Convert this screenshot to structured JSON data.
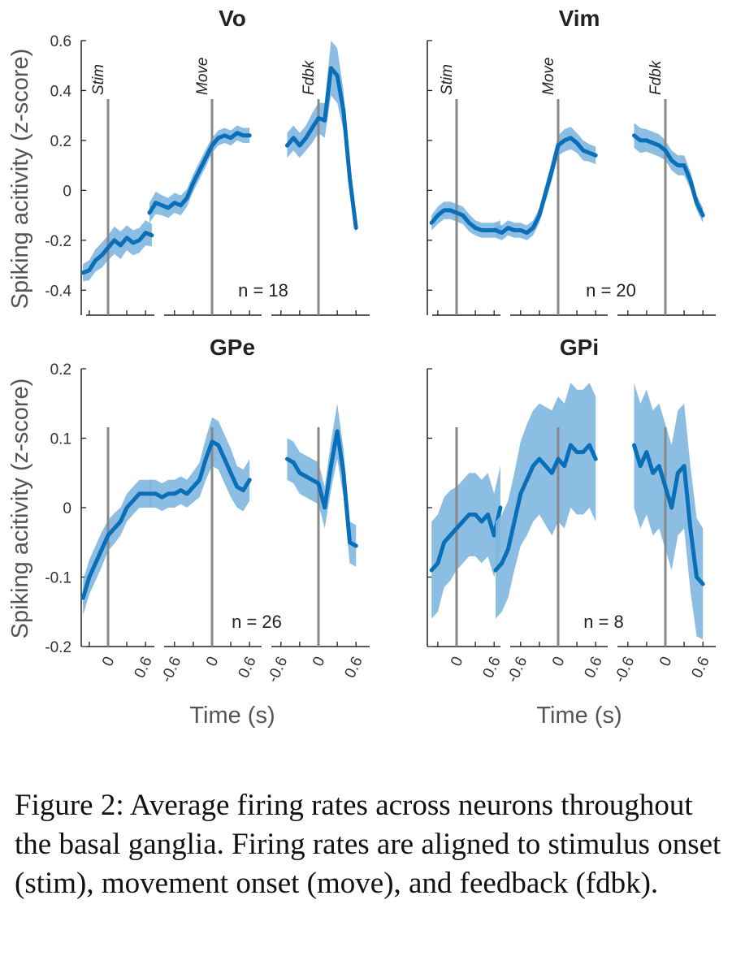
{
  "figure": {
    "ylabel": "Spiking acitivity (z-score)",
    "xlabel": "Time (s)",
    "caption": "Figure 2: Average firing rates across neurons throughout the basal ganglia. Firing rates are aligned to stimulus onset (stim), movement onset (move), and feedback (fdbk)."
  },
  "colors": {
    "line": "#0a6fb9",
    "band": "#7fb6df",
    "event": "#888888",
    "axis": "#222222",
    "text": "#333333"
  },
  "chart_data": [
    {
      "type": "line",
      "title": "Vo",
      "annotation": "n = 18",
      "ylim": [
        -0.5,
        0.6
      ],
      "yticks": [
        -0.4,
        -0.2,
        0,
        0.2,
        0.4,
        0.6
      ],
      "yticklabels": [
        "-0.4",
        "-0.2",
        "0",
        "0.2",
        "0.4",
        "0.6"
      ],
      "show_ylabels": true,
      "xticklabels": [
        [],
        [],
        []
      ],
      "event_labels": [
        "Stim",
        "Move",
        "Fdbk"
      ],
      "series": [
        {
          "align": "Stim",
          "x": [
            -0.4,
            -0.3,
            -0.2,
            -0.1,
            0,
            0.1,
            0.2,
            0.3,
            0.4,
            0.5,
            0.6,
            0.7
          ],
          "y": [
            -0.33,
            -0.32,
            -0.28,
            -0.26,
            -0.23,
            -0.2,
            -0.22,
            -0.19,
            -0.21,
            -0.2,
            -0.17,
            -0.18
          ],
          "err": [
            0.035,
            0.04,
            0.045,
            0.05,
            0.05,
            0.055,
            0.055,
            0.05,
            0.05,
            0.05,
            0.05,
            0.045
          ]
        },
        {
          "align": "Move",
          "x": [
            -1.0,
            -0.9,
            -0.8,
            -0.7,
            -0.6,
            -0.5,
            -0.4,
            -0.3,
            -0.2,
            -0.1,
            0,
            0.1,
            0.2,
            0.3,
            0.4,
            0.5,
            0.6
          ],
          "y": [
            -0.09,
            -0.05,
            -0.06,
            -0.07,
            -0.05,
            -0.06,
            -0.03,
            0.03,
            0.08,
            0.13,
            0.18,
            0.21,
            0.22,
            0.21,
            0.23,
            0.22,
            0.22
          ],
          "err": [
            0.04,
            0.045,
            0.04,
            0.04,
            0.04,
            0.04,
            0.035,
            0.035,
            0.035,
            0.035,
            0.03,
            0.03,
            0.03,
            0.03,
            0.03,
            0.03,
            0.03
          ]
        },
        {
          "align": "Fdbk",
          "x": [
            -0.5,
            -0.4,
            -0.3,
            -0.2,
            -0.1,
            0,
            0.1,
            0.2,
            0.3,
            0.4,
            0.5,
            0.6
          ],
          "y": [
            0.18,
            0.21,
            0.18,
            0.21,
            0.25,
            0.29,
            0.28,
            0.49,
            0.46,
            0.32,
            0.05,
            -0.15
          ],
          "err": [
            0.05,
            0.05,
            0.05,
            0.05,
            0.06,
            0.06,
            0.07,
            0.11,
            0.11,
            0.08,
            0.04,
            0.03
          ]
        }
      ]
    },
    {
      "type": "line",
      "title": "Vim",
      "annotation": "n = 20",
      "ylim": [
        -0.5,
        0.6
      ],
      "yticks": [
        -0.4,
        -0.2,
        0,
        0.2,
        0.4,
        0.6
      ],
      "yticklabels": [],
      "show_ylabels": false,
      "xticklabels": [
        [],
        [],
        []
      ],
      "event_labels": [
        "Stim",
        "Move",
        "Fdbk"
      ],
      "series": [
        {
          "align": "Stim",
          "x": [
            -0.4,
            -0.3,
            -0.2,
            -0.1,
            0,
            0.1,
            0.2,
            0.3,
            0.4,
            0.5,
            0.6,
            0.7
          ],
          "y": [
            -0.13,
            -0.1,
            -0.08,
            -0.08,
            -0.09,
            -0.1,
            -0.13,
            -0.15,
            -0.16,
            -0.16,
            -0.16,
            -0.15
          ],
          "err": [
            0.03,
            0.035,
            0.035,
            0.035,
            0.035,
            0.035,
            0.035,
            0.03,
            0.03,
            0.03,
            0.03,
            0.03
          ]
        },
        {
          "align": "Move",
          "x": [
            -1.0,
            -0.9,
            -0.8,
            -0.7,
            -0.6,
            -0.5,
            -0.4,
            -0.3,
            -0.2,
            -0.1,
            0,
            0.1,
            0.2,
            0.3,
            0.4,
            0.5,
            0.6
          ],
          "y": [
            -0.16,
            -0.17,
            -0.15,
            -0.16,
            -0.16,
            -0.17,
            -0.15,
            -0.1,
            -0.01,
            0.08,
            0.18,
            0.2,
            0.21,
            0.19,
            0.16,
            0.15,
            0.14
          ],
          "err": [
            0.03,
            0.03,
            0.03,
            0.03,
            0.03,
            0.03,
            0.03,
            0.03,
            0.035,
            0.04,
            0.04,
            0.045,
            0.045,
            0.04,
            0.04,
            0.035,
            0.035
          ]
        },
        {
          "align": "Fdbk",
          "x": [
            -0.5,
            -0.4,
            -0.3,
            -0.2,
            -0.1,
            0,
            0.1,
            0.2,
            0.3,
            0.4,
            0.5,
            0.6
          ],
          "y": [
            0.22,
            0.2,
            0.2,
            0.19,
            0.18,
            0.16,
            0.12,
            0.1,
            0.1,
            0.04,
            -0.05,
            -0.1
          ],
          "err": [
            0.05,
            0.05,
            0.045,
            0.045,
            0.045,
            0.04,
            0.04,
            0.04,
            0.04,
            0.035,
            0.03,
            0.03
          ]
        }
      ]
    },
    {
      "type": "line",
      "title": "GPe",
      "annotation": "n = 26",
      "ylim": [
        -0.2,
        0.2
      ],
      "yticks": [
        -0.2,
        -0.1,
        0,
        0.1,
        0.2
      ],
      "yticklabels": [
        "-0.2",
        "-0.1",
        "0",
        "0.1",
        "0.2"
      ],
      "show_ylabels": true,
      "xticklabels": [
        [
          "0",
          "0.6"
        ],
        [
          "-0.6",
          "0",
          "0.6"
        ],
        [
          "-0.6",
          "0",
          "0.6"
        ]
      ],
      "event_labels": [],
      "series": [
        {
          "align": "Stim",
          "x": [
            -0.4,
            -0.3,
            -0.2,
            -0.1,
            0,
            0.1,
            0.2,
            0.3,
            0.4,
            0.5,
            0.6,
            0.7
          ],
          "y": [
            -0.13,
            -0.1,
            -0.08,
            -0.06,
            -0.04,
            -0.03,
            -0.02,
            0.0,
            0.01,
            0.02,
            0.02,
            0.02
          ],
          "err": [
            0.025,
            0.025,
            0.025,
            0.025,
            0.022,
            0.022,
            0.02,
            0.02,
            0.02,
            0.02,
            0.02,
            0.02
          ]
        },
        {
          "align": "Move",
          "x": [
            -1.0,
            -0.9,
            -0.8,
            -0.7,
            -0.6,
            -0.5,
            -0.4,
            -0.3,
            -0.2,
            -0.1,
            0,
            0.1,
            0.2,
            0.3,
            0.4,
            0.5,
            0.6
          ],
          "y": [
            0.02,
            0.02,
            0.015,
            0.02,
            0.02,
            0.025,
            0.02,
            0.03,
            0.04,
            0.07,
            0.095,
            0.09,
            0.07,
            0.05,
            0.03,
            0.025,
            0.04
          ],
          "err": [
            0.02,
            0.02,
            0.02,
            0.02,
            0.02,
            0.02,
            0.02,
            0.022,
            0.025,
            0.03,
            0.035,
            0.035,
            0.035,
            0.035,
            0.03,
            0.03,
            0.03
          ]
        },
        {
          "align": "Fdbk",
          "x": [
            -0.5,
            -0.4,
            -0.3,
            -0.2,
            -0.1,
            0,
            0.1,
            0.2,
            0.3,
            0.4,
            0.5,
            0.6
          ],
          "y": [
            0.07,
            0.065,
            0.05,
            0.045,
            0.04,
            0.035,
            0.0,
            0.06,
            0.11,
            0.05,
            -0.05,
            -0.055
          ],
          "err": [
            0.03,
            0.03,
            0.03,
            0.03,
            0.03,
            0.03,
            0.03,
            0.035,
            0.04,
            0.035,
            0.03,
            0.03
          ]
        }
      ]
    },
    {
      "type": "line",
      "title": "GPi",
      "annotation": "n = 8",
      "ylim": [
        -0.2,
        0.2
      ],
      "yticks": [
        -0.2,
        -0.1,
        0,
        0.1,
        0.2
      ],
      "yticklabels": [],
      "show_ylabels": false,
      "xticklabels": [
        [
          "0",
          "0.6"
        ],
        [
          "-0.6",
          "0",
          "0.6"
        ],
        [
          "-0.6",
          "0",
          "0.6"
        ]
      ],
      "event_labels": [],
      "series": [
        {
          "align": "Stim",
          "x": [
            -0.4,
            -0.3,
            -0.2,
            -0.1,
            0,
            0.1,
            0.2,
            0.3,
            0.4,
            0.5,
            0.6,
            0.7
          ],
          "y": [
            -0.09,
            -0.08,
            -0.05,
            -0.04,
            -0.03,
            -0.02,
            -0.01,
            -0.01,
            -0.02,
            -0.01,
            -0.04,
            0.0
          ],
          "err": [
            0.07,
            0.07,
            0.065,
            0.065,
            0.06,
            0.06,
            0.06,
            0.06,
            0.06,
            0.06,
            0.06,
            0.06
          ]
        },
        {
          "align": "Move",
          "x": [
            -1.0,
            -0.9,
            -0.8,
            -0.7,
            -0.6,
            -0.5,
            -0.4,
            -0.3,
            -0.2,
            -0.1,
            0,
            0.1,
            0.2,
            0.3,
            0.4,
            0.5,
            0.6
          ],
          "y": [
            -0.09,
            -0.08,
            -0.06,
            -0.02,
            0.02,
            0.04,
            0.06,
            0.07,
            0.06,
            0.05,
            0.07,
            0.06,
            0.09,
            0.08,
            0.08,
            0.09,
            0.07
          ],
          "err": [
            0.07,
            0.07,
            0.07,
            0.07,
            0.075,
            0.08,
            0.08,
            0.08,
            0.085,
            0.09,
            0.09,
            0.09,
            0.09,
            0.09,
            0.09,
            0.09,
            0.09
          ]
        },
        {
          "align": "Fdbk",
          "x": [
            -0.5,
            -0.4,
            -0.3,
            -0.2,
            -0.1,
            0,
            0.1,
            0.2,
            0.3,
            0.4,
            0.5,
            0.6
          ],
          "y": [
            0.09,
            0.06,
            0.08,
            0.05,
            0.06,
            0.03,
            0.0,
            0.05,
            0.06,
            -0.03,
            -0.1,
            -0.11
          ],
          "err": [
            0.09,
            0.09,
            0.09,
            0.09,
            0.09,
            0.09,
            0.09,
            0.09,
            0.09,
            0.09,
            0.085,
            0.08
          ]
        }
      ]
    }
  ]
}
